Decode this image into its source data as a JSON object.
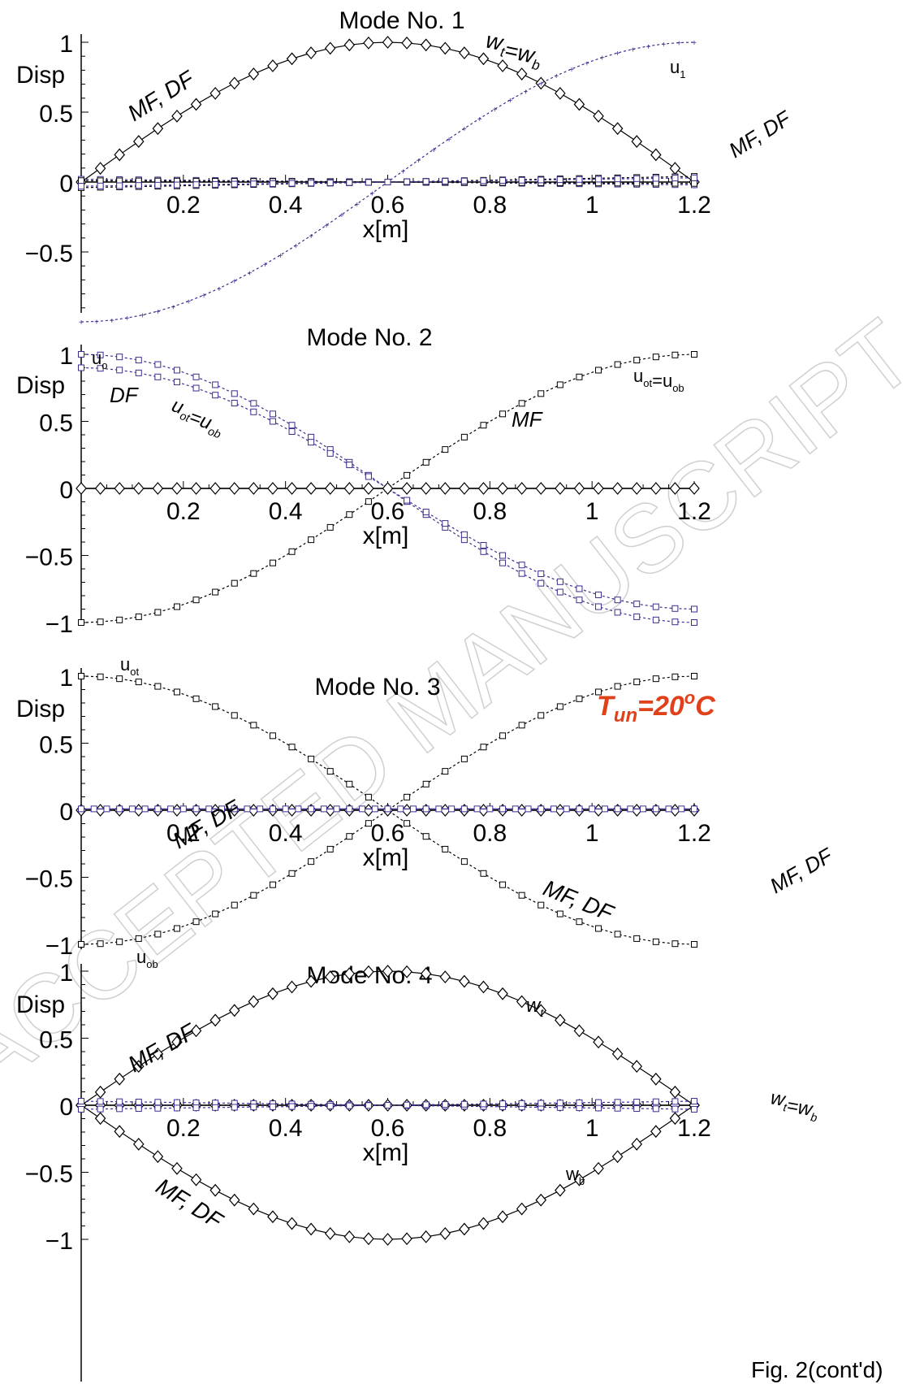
{
  "figure": {
    "caption": "Fig. 2(cont'd)",
    "watermark": "ACCEPTED MANUSCRIPT",
    "temperature_label": "T",
    "temperature_sub": "un",
    "temperature_rest": "=20",
    "temperature_sup": "o",
    "temperature_unit": "C",
    "colors": {
      "black": "#000000",
      "purple": "#3a2f8f",
      "red": "#e0401a",
      "watermark": "#cfcfcf"
    }
  },
  "chart_data": [
    {
      "type": "line",
      "title": "Mode No. 1",
      "ylabel": "Disp",
      "xlabel": "x[m]",
      "xlim": [
        0,
        1.2
      ],
      "ylim": [
        -1,
        1
      ],
      "xticks": [
        "0.2",
        "0.4",
        "0.6",
        "0.8",
        "1",
        "1.2"
      ],
      "yticks": [
        "1",
        "0.5",
        "0",
        "-0.5"
      ],
      "annotations": [
        "MF, DF",
        "w_t=w_b",
        "u_1",
        "MF, DF"
      ],
      "series": [
        {
          "name": "w_t=w_b",
          "x": [
            0,
            0.2,
            0.4,
            0.6,
            0.8,
            1.0,
            1.2
          ],
          "y": [
            0.0,
            0.5,
            0.87,
            1.0,
            0.87,
            0.5,
            0.0
          ]
        },
        {
          "name": "u_1",
          "x": [
            0,
            0.2,
            0.4,
            0.6,
            0.8,
            1.0,
            1.2
          ],
          "y": [
            -1.0,
            -0.87,
            -0.5,
            0.0,
            0.5,
            0.87,
            1.0
          ]
        }
      ]
    },
    {
      "type": "line",
      "title": "Mode No. 2",
      "ylabel": "Disp",
      "xlabel": "x[m]",
      "xlim": [
        0,
        1.2
      ],
      "ylim": [
        -1,
        1
      ],
      "xticks": [
        "0.2",
        "0.4",
        "0.6",
        "0.8",
        "1",
        "1.2"
      ],
      "yticks": [
        "1",
        "0.5",
        "0",
        "-0.5",
        "-1"
      ],
      "annotations": [
        "u_o",
        "DF",
        "u_ot=u_ob",
        "MF",
        "u_ot=u_ob"
      ],
      "series": [
        {
          "name": "u_o",
          "x": [
            0,
            0.2,
            0.4,
            0.6,
            0.8,
            1.0,
            1.2
          ],
          "y": [
            1.0,
            0.87,
            0.5,
            0.0,
            -0.5,
            -0.87,
            -1.0
          ]
        },
        {
          "name": "DF",
          "x": [
            0,
            0.2,
            0.4,
            0.6,
            0.8,
            1.0,
            1.2
          ],
          "y": [
            0.9,
            0.78,
            0.45,
            0.0,
            -0.45,
            -0.78,
            -0.9
          ]
        },
        {
          "name": "MF",
          "x": [
            0,
            0.2,
            0.4,
            0.6,
            0.8,
            1.0,
            1.2
          ],
          "y": [
            -1.0,
            -0.87,
            -0.5,
            0.0,
            0.5,
            0.87,
            1.0
          ]
        }
      ]
    },
    {
      "type": "line",
      "title": "Mode No. 3",
      "ylabel": "Disp",
      "xlabel": "x[m]",
      "xlim": [
        0,
        1.2
      ],
      "ylim": [
        -1,
        1
      ],
      "xticks": [
        "0.2",
        "0.4",
        "0.6",
        "0.8",
        "1",
        "1.2"
      ],
      "yticks": [
        "1",
        "0.5",
        "0",
        "-0.5",
        "-1"
      ],
      "annotations": [
        "u_ot",
        "MF, DF",
        "MF, DF",
        "u_ob",
        "MF, DF"
      ],
      "series": [
        {
          "name": "u_ot",
          "x": [
            0,
            0.2,
            0.4,
            0.6,
            0.8,
            1.0,
            1.2
          ],
          "y": [
            1.0,
            0.87,
            0.5,
            0.0,
            -0.5,
            -0.87,
            -1.0
          ]
        },
        {
          "name": "u_ob",
          "x": [
            0,
            0.2,
            0.4,
            0.6,
            0.8,
            1.0,
            1.2
          ],
          "y": [
            -1.0,
            -0.87,
            -0.5,
            0.0,
            0.5,
            0.87,
            1.0
          ]
        }
      ]
    },
    {
      "type": "line",
      "title": "Mode No. 4",
      "ylabel": "Disp",
      "xlabel": "x[m]",
      "xlim": [
        0,
        1.2
      ],
      "ylim": [
        -1,
        1
      ],
      "xticks": [
        "0.2",
        "0.4",
        "0.6",
        "0.8",
        "1",
        "1.2"
      ],
      "yticks": [
        "1",
        "0.5",
        "0",
        "-0.5",
        "-1"
      ],
      "annotations": [
        "MF, DF",
        "w_t",
        "MF, DF",
        "w_b",
        "w_t=w_b"
      ],
      "series": [
        {
          "name": "w_t",
          "x": [
            0,
            0.2,
            0.4,
            0.6,
            0.8,
            1.0,
            1.2
          ],
          "y": [
            0.0,
            0.5,
            0.87,
            1.0,
            0.87,
            0.5,
            0.0
          ]
        },
        {
          "name": "w_b",
          "x": [
            0,
            0.2,
            0.4,
            0.6,
            0.8,
            1.0,
            1.2
          ],
          "y": [
            0.0,
            -0.5,
            -0.87,
            -1.0,
            -0.87,
            -0.5,
            0.0
          ]
        }
      ]
    }
  ]
}
